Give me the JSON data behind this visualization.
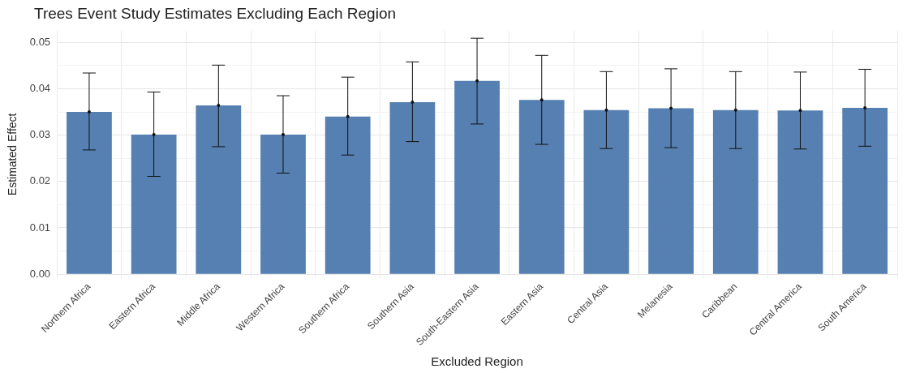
{
  "chart_data": {
    "type": "bar",
    "title": "Trees Event Study Estimates Excluding Each Region",
    "xlabel": "Excluded Region",
    "ylabel": "Estimated Effect",
    "categories": [
      "Northern Africa",
      "Eastern Africa",
      "Middle Africa",
      "Western Africa",
      "Southern Africa",
      "Southern Asia",
      "South-Eastern Asia",
      "Eastern Asia",
      "Central Asia",
      "Melanesia",
      "Caribbean",
      "Central America",
      "South America"
    ],
    "values": [
      0.035,
      0.0301,
      0.0364,
      0.0301,
      0.034,
      0.0371,
      0.0417,
      0.0376,
      0.0354,
      0.0358,
      0.0354,
      0.0353,
      0.0359
    ],
    "errors": [
      [
        0.0268,
        0.0434
      ],
      [
        0.0211,
        0.0393
      ],
      [
        0.0275,
        0.0451
      ],
      [
        0.0218,
        0.0385
      ],
      [
        0.0257,
        0.0425
      ],
      [
        0.0286,
        0.0458
      ],
      [
        0.0324,
        0.0509
      ],
      [
        0.028,
        0.0472
      ],
      [
        0.0271,
        0.0437
      ],
      [
        0.0273,
        0.0443
      ],
      [
        0.0271,
        0.0437
      ],
      [
        0.027,
        0.0436
      ],
      [
        0.0276,
        0.0442
      ]
    ],
    "color": "#5580b1",
    "ylim": [
      -0.0008,
      0.0525
    ],
    "yticks": [
      {
        "value": 0,
        "label": "0.00"
      },
      {
        "value": 0.005,
        "label": null
      },
      0.01,
      {
        "value": 0.015,
        "label": null
      },
      0.02,
      {
        "value": 0.025,
        "label": null
      },
      0.03,
      {
        "value": 0.035,
        "label": null
      },
      0.04,
      {
        "value": 0.045,
        "label": null
      },
      0.05
    ],
    "grid": true,
    "legend": false
  }
}
